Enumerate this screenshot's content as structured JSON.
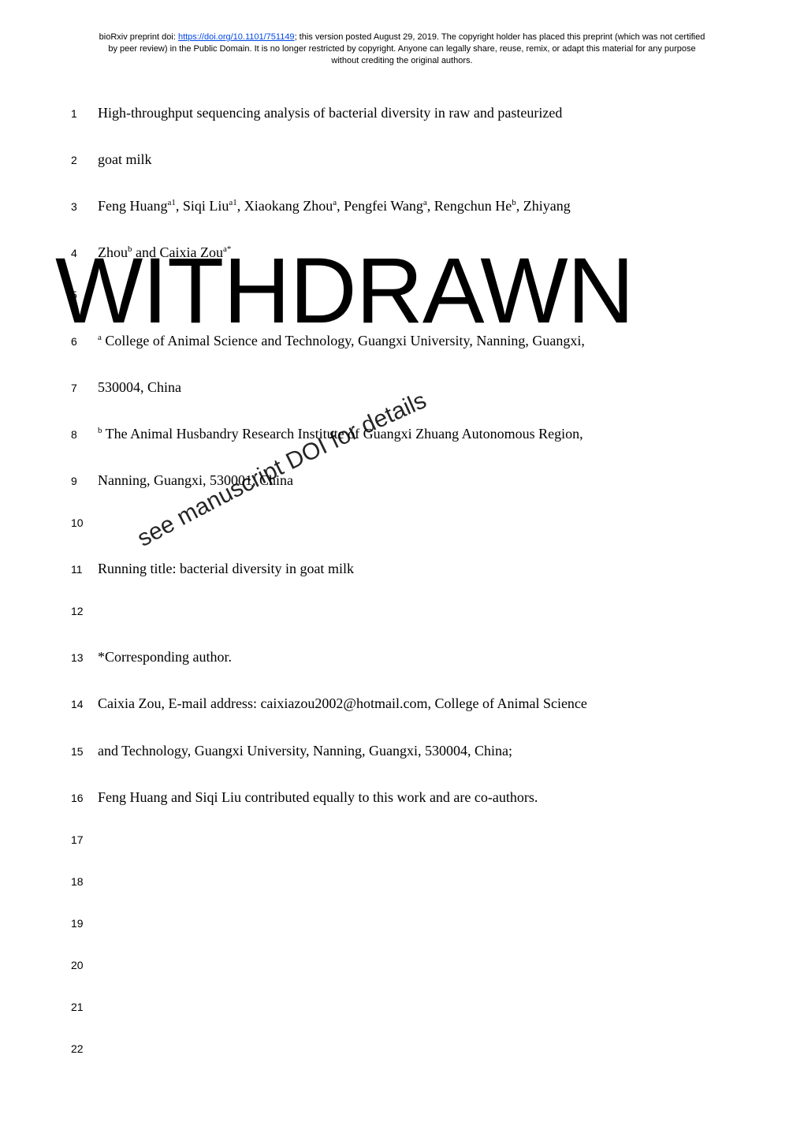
{
  "preprint": {
    "prefix": "bioRxiv preprint doi: ",
    "doi_url": "https://doi.org/10.1101/751149",
    "suffix1": "; this version posted August 29, 2019. The copyright holder has placed this preprint (which was not certified by peer review) in the Public Domain. It is no longer restricted by copyright. Anyone can legally share, reuse, remix, or adapt this material for any purpose without crediting the original authors."
  },
  "watermark": {
    "main": "WITHDRAWN",
    "sub": "see manuscript DOI for details"
  },
  "lines": [
    {
      "n": "1",
      "html": "High-throughput sequencing analysis of bacterial diversity in raw and pasteurized"
    },
    {
      "n": "2",
      "html": "goat milk"
    },
    {
      "n": "3",
      "html": "Feng Huang<span class='sup'>a1</span>, Siqi Liu<span class='sup'>a1</span>, Xiaokang Zhou<span class='sup'>a</span>, Pengfei Wang<span class='sup'>a</span>, Rengchun He<span class='sup'>b</span>, Zhiyang"
    },
    {
      "n": "4",
      "html": "Zhou<span class='sup'>b</span> and Caixia Zou<span class='sup'>a*</span>"
    },
    {
      "n": "5",
      "html": ""
    },
    {
      "n": "6",
      "html": "<span class='sup'>a</span> College of Animal Science and Technology, Guangxi University, Nanning, Guangxi,"
    },
    {
      "n": "7",
      "html": "530004, China"
    },
    {
      "n": "8",
      "html": "<span class='sup'>b</span> The Animal Husbandry Research Institute of Guangxi Zhuang Autonomous Region,"
    },
    {
      "n": "9",
      "html": "Nanning, Guangxi, 530001, China"
    },
    {
      "n": "10",
      "html": ""
    },
    {
      "n": "11",
      "html": "Running title: bacterial diversity in goat milk"
    },
    {
      "n": "12",
      "html": ""
    },
    {
      "n": "13",
      "html": "*Corresponding author."
    },
    {
      "n": "14",
      "html": "Caixia Zou, E-mail address: caixiazou2002@hotmail.com, College of Animal Science"
    },
    {
      "n": "15",
      "html": "and Technology, Guangxi University, Nanning, Guangxi, 530004, China;"
    },
    {
      "n": "16",
      "html": "Feng Huang and Siqi Liu contributed equally to this work and are co-authors."
    },
    {
      "n": "17",
      "html": ""
    },
    {
      "n": "18",
      "html": ""
    },
    {
      "n": "19",
      "html": ""
    },
    {
      "n": "20",
      "html": ""
    },
    {
      "n": "21",
      "html": ""
    },
    {
      "n": "22",
      "html": ""
    }
  ]
}
